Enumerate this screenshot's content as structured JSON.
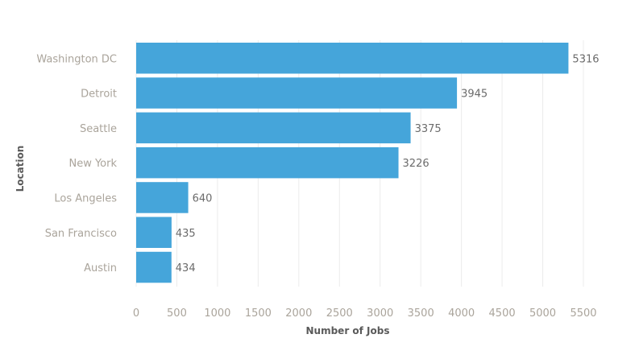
{
  "chart_data": {
    "type": "bar",
    "orientation": "horizontal",
    "categories": [
      "Washington DC",
      "Detroit",
      "Seattle",
      "New York",
      "Los Angeles",
      "San Francisco",
      "Austin"
    ],
    "values": [
      5316,
      3945,
      3375,
      3226,
      640,
      435,
      434
    ],
    "xlabel": "Number of Jobs",
    "ylabel": "Location",
    "xlim": [
      0,
      5500
    ],
    "xticks": [
      0,
      500,
      1000,
      1500,
      2000,
      2500,
      3000,
      3500,
      4000,
      4500,
      5000,
      5500
    ],
    "grid": "vertical",
    "data_labels": true,
    "bar_color": "#45a5da"
  }
}
